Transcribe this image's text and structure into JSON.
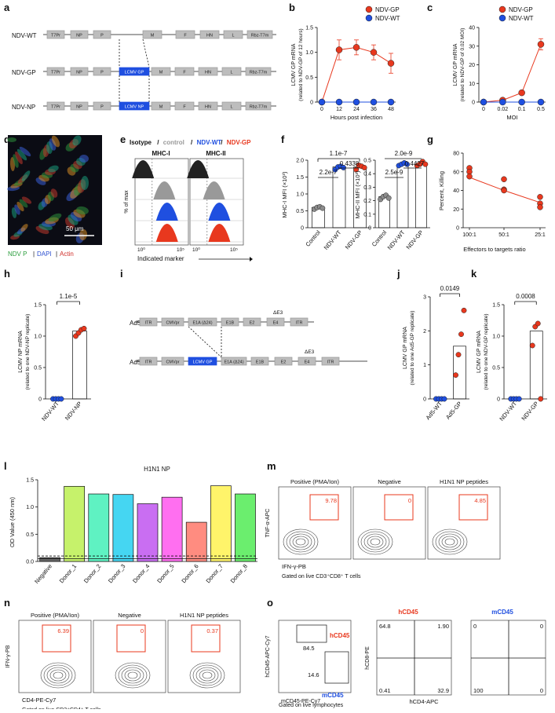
{
  "panel_letters": [
    "a",
    "b",
    "c",
    "d",
    "e",
    "f",
    "g",
    "h",
    "i",
    "j",
    "k",
    "l",
    "m",
    "n",
    "o"
  ],
  "a": {
    "constructs": [
      {
        "name": "NDV-WT",
        "genes": [
          "T7Pr",
          "NP",
          "P",
          "M",
          "F",
          "HN",
          "L",
          "Rbz-T7m"
        ]
      },
      {
        "name": "NDV-GP",
        "genes": [
          "T7Pr",
          "NP",
          "P",
          "LCMV GP",
          "M",
          "F",
          "HN",
          "L",
          "Rbz-T7m"
        ]
      },
      {
        "name": "NDV-NP",
        "genes": [
          "T7Pr",
          "NP",
          "P",
          "LCMV NP",
          "M",
          "F",
          "HN",
          "L",
          "Rbz-T7m"
        ]
      }
    ]
  },
  "b": {
    "ylabel": "LCMV GP mRNA",
    "ylabel2": "(related to NDV-GP of 12 hours)",
    "xlabel": "Hours post infection",
    "yticks": [
      "0",
      "0.5",
      "1.0",
      "1.5"
    ],
    "xticks": [
      "0",
      "12",
      "24",
      "36",
      "48"
    ],
    "legend": [
      "NDV-GP",
      "NDV-WT"
    ]
  },
  "c": {
    "ylabel": "LCMV GP mRNA",
    "ylabel2": "(related to NDV-GP of 0.02 MOI)",
    "xlabel": "MOI",
    "yticks": [
      "0",
      "10",
      "20",
      "30",
      "40"
    ],
    "xticks": [
      "0",
      "0.02",
      "0.1",
      "0.5"
    ],
    "legend": [
      "NDV-GP",
      "NDV-WT"
    ]
  },
  "d": {
    "scalebar": "50 μm",
    "legend_ndv": "NDV P",
    "legend_dapi": "DAPI",
    "legend_actin": "Actin",
    "sep": "|"
  },
  "e": {
    "title_isotype": "Isotype",
    "title_control": "control",
    "title_wt": "NDV-WT",
    "title_gp": "NDV-GP",
    "slash": "/",
    "mhc1": "MHC-I",
    "mhc2": "MHC-II",
    "ylabel": "% of max",
    "xlabel": "Indicated marker",
    "ticks": [
      "10⁰",
      "10⁵"
    ]
  },
  "f": {
    "left": {
      "ylabel": "MHC-I MFI (×10³)",
      "yticks": [
        "0",
        "0.5",
        "1.0",
        "1.5",
        "2.0"
      ],
      "pvals": [
        "1.1e-7",
        "2.2e-7",
        "0.4338"
      ]
    },
    "right": {
      "ylabel": "MHC-II MFI (×10³)",
      "yticks": [
        "0",
        "0.1",
        "0.2",
        "0.3",
        "0.4",
        "0.5"
      ],
      "pvals": [
        "2.0e-9",
        "2.5e-9",
        "0.4427"
      ]
    },
    "groups": [
      "Control",
      "NDV-WT",
      "NDV-GP"
    ]
  },
  "g": {
    "ylabel": "Percent, Killing",
    "xlabel": "Effectors to targets ratio",
    "yticks": [
      "0",
      "20",
      "40",
      "60",
      "80"
    ],
    "xticks": [
      "100:1",
      "50:1",
      "25:1"
    ]
  },
  "h": {
    "ylabel": "LCMV NP mRNA",
    "ylabel2": "(related to one NDV-NP replicate)",
    "pval": "1.1e-5",
    "yticks": [
      "0",
      "0.5",
      "1.0",
      "1.5"
    ],
    "groups": [
      "NDV-WT",
      "NDV-NP"
    ]
  },
  "i": {
    "constructs": [
      {
        "name": "Ad5-WT",
        "genes": [
          "ITR",
          "CMVpr",
          "E1A (Δ24)",
          "E1B",
          "E2",
          "E4",
          "ITR"
        ]
      },
      {
        "name": "Ad5-GP",
        "genes": [
          "ITR",
          "CMVpr",
          "LCMV GP",
          "E1A (Δ24)",
          "E1B",
          "E2",
          "E4",
          "ITR"
        ]
      }
    ],
    "de3": "ΔE3"
  },
  "j": {
    "ylabel": "LCMV GP mRNA",
    "ylabel2": "(related to one Ad5-GP replicate)",
    "pval": "0.0149",
    "yticks": [
      "0",
      "1",
      "2",
      "3"
    ],
    "groups": [
      "Ad5-WT",
      "Ad5-GP"
    ]
  },
  "k": {
    "ylabel": "LCMV GP mRNA",
    "ylabel2": "(related to one NDV-GP replicate)",
    "pval": "0.0008",
    "yticks": [
      "0",
      "0.5",
      "1.0",
      "1.5"
    ],
    "groups": [
      "NDV-WT",
      "NDV-GP"
    ]
  },
  "l": {
    "title": "H1N1 NP",
    "ylabel": "OD Value (450 nm)",
    "yticks": [
      "0.0",
      "0.5",
      "1.0",
      "1.5"
    ],
    "categories": [
      "Negative",
      "Donor_1",
      "Donor_2",
      "Donor_3",
      "Donor_4",
      "Donor_5",
      "Donor_6",
      "Donor_7",
      "Donor_8"
    ]
  },
  "m": {
    "titles": [
      "Positive (PMA/Ion)",
      "Negative",
      "H1N1 NP peptides"
    ],
    "values": [
      "9.78",
      "0",
      "4.85"
    ],
    "ylabel": "TNF-α-APC",
    "xlabel": "IFN-γ-PB",
    "gated": "Gated on live CD3⁺CD8⁺ T cells"
  },
  "n": {
    "titles": [
      "Positive (PMA/Ion)",
      "Negative",
      "H1N1 NP peptides"
    ],
    "values": [
      "6.39",
      "0",
      "0.37"
    ],
    "ylabel": "IFN-γ-PB",
    "xlabel": "CD4-PE-Cy7",
    "gated": "Gated on live CD3⁺CD4⁺ T cells"
  },
  "o": {
    "gate_h": "hCD45",
    "gate_m": "mCD45",
    "val_h": "84.5",
    "val_m": "14.6",
    "ylabel1": "hCD45-APC-Cy7",
    "xlabel1": "mCD45-PE-Cy7",
    "gated": "Gated on live lymphocytes",
    "title_h": "hCD45",
    "title_m": "mCD45",
    "quad_h": [
      "64.8",
      "1.90",
      "0.41",
      "32.9"
    ],
    "quad_m": [
      "0",
      "0",
      "100",
      "0"
    ],
    "ylabel2": "hCD8-PE",
    "xlabel2": "hCD4-APC"
  },
  "colors": {
    "red": "#e8381e",
    "blue": "#1f4fe0",
    "gray": "#8c8c8c"
  },
  "chart_data": [
    {
      "type": "line",
      "panel": "b",
      "x": [
        0,
        12,
        24,
        36,
        48
      ],
      "xlabel": "Hours post infection",
      "ylabel": "LCMV GP mRNA (related to NDV-GP of 12 hours)",
      "ylim": [
        0,
        1.5
      ],
      "series": [
        {
          "name": "NDV-GP",
          "values": [
            0,
            1.05,
            1.1,
            1.0,
            0.78
          ],
          "err": [
            0,
            0.2,
            0.15,
            0.15,
            0.2
          ]
        },
        {
          "name": "NDV-WT",
          "values": [
            0,
            0,
            0,
            0,
            0
          ]
        }
      ]
    },
    {
      "type": "line",
      "panel": "c",
      "x": [
        "0",
        "0.02",
        "0.1",
        "0.5"
      ],
      "xlabel": "MOI",
      "ylabel": "LCMV GP mRNA (related to NDV-GP of 0.02 MOI)",
      "ylim": [
        0,
        40
      ],
      "series": [
        {
          "name": "NDV-GP",
          "values": [
            0,
            1,
            5,
            31
          ],
          "err": [
            0,
            0.5,
            0.8,
            3
          ]
        },
        {
          "name": "NDV-WT",
          "values": [
            0,
            0,
            0,
            0
          ]
        }
      ]
    },
    {
      "type": "bar",
      "panel": "f-left",
      "categories": [
        "Control",
        "NDV-WT",
        "NDV-GP"
      ],
      "values": [
        0.6,
        1.8,
        1.8
      ],
      "ylim": [
        0,
        2.0
      ]
    },
    {
      "type": "bar",
      "panel": "f-right",
      "categories": [
        "Control",
        "NDV-WT",
        "NDV-GP"
      ],
      "values": [
        0.23,
        0.47,
        0.47
      ],
      "ylim": [
        0,
        0.5
      ]
    },
    {
      "type": "scatter",
      "panel": "g",
      "x": [
        "100:1",
        "50:1",
        "25:1"
      ],
      "ylim": [
        0,
        80
      ],
      "values": [
        [
          64,
          60,
          55
        ],
        [
          52,
          41,
          40
        ],
        [
          33,
          26,
          22
        ]
      ],
      "mean": [
        54,
        40,
        27
      ]
    },
    {
      "type": "bar",
      "panel": "h",
      "categories": [
        "NDV-WT",
        "NDV-NP"
      ],
      "values": [
        0,
        1.08
      ],
      "ylim": [
        0,
        1.5
      ]
    },
    {
      "type": "bar",
      "panel": "j",
      "categories": [
        "Ad5-WT",
        "Ad5-GP"
      ],
      "values": [
        0,
        1.55
      ],
      "ylim": [
        0,
        3
      ]
    },
    {
      "type": "bar",
      "panel": "k",
      "categories": [
        "NDV-WT",
        "NDV-GP"
      ],
      "values": [
        0,
        1.08
      ],
      "ylim": [
        0,
        1.5
      ]
    },
    {
      "type": "bar",
      "panel": "l",
      "title": "H1N1 NP",
      "categories": [
        "Negative",
        "Donor_1",
        "Donor_2",
        "Donor_3",
        "Donor_4",
        "Donor_5",
        "Donor_6",
        "Donor_7",
        "Donor_8"
      ],
      "values": [
        0.07,
        1.38,
        1.24,
        1.23,
        1.06,
        1.18,
        0.72,
        1.39,
        1.24
      ],
      "ylim": [
        0,
        1.5
      ],
      "threshold": 0.1
    }
  ]
}
